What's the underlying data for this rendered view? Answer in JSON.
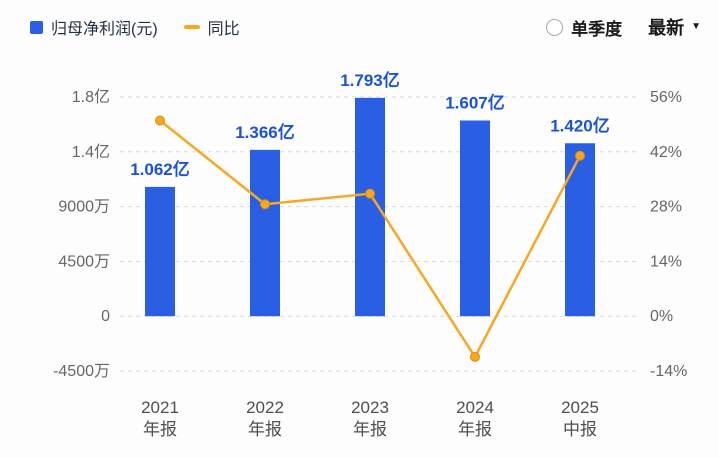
{
  "colors": {
    "background": "#fdfdfd",
    "bar": "#2b5fe3",
    "line": "#f7a823",
    "value_label": "#1a53d8",
    "axis_text": "#666666",
    "x_label": "#4f4f4f",
    "grid": "#d9d9d9",
    "legend_text": "#232f42",
    "control_text": "#1a1a1a"
  },
  "header": {
    "legend": [
      {
        "label": "归母净利润(元)",
        "swatch": "blue-square"
      },
      {
        "label": "同比",
        "swatch": "orange-dash"
      }
    ],
    "quarter_toggle_label": "单季度",
    "period_dropdown_label": "最新"
  },
  "chart_data": {
    "type": "bar+line",
    "categories": [
      "2021 年报",
      "2022 年报",
      "2023 年报",
      "2024 年报",
      "2025 中报"
    ],
    "categories_two_line": [
      [
        "2021",
        "年报"
      ],
      [
        "2022",
        "年报"
      ],
      [
        "2023",
        "年报"
      ],
      [
        "2024",
        "年报"
      ],
      [
        "2025",
        "中报"
      ]
    ],
    "series": [
      {
        "name": "归母净利润(元)",
        "type": "bar",
        "unit": "亿元",
        "values": [
          1.062,
          1.366,
          1.793,
          1.607,
          1.42
        ],
        "data_labels": [
          "1.062亿",
          "1.366亿",
          "1.793亿",
          "1.607亿",
          "1.420亿"
        ]
      },
      {
        "name": "同比",
        "type": "line",
        "unit": "%",
        "values": [
          50,
          28.6,
          31.3,
          -10.4,
          41
        ]
      }
    ],
    "left_axis": {
      "tick_labels": [
        "1.8亿",
        "1.4亿",
        "9000万",
        "4500万",
        "0",
        "-4500万"
      ],
      "tick_values_yi": [
        1.8,
        1.35,
        0.9,
        0.45,
        0,
        -0.45
      ],
      "range_yi": [
        -0.45,
        1.8
      ]
    },
    "right_axis": {
      "tick_labels": [
        "56%",
        "42%",
        "28%",
        "14%",
        "0%",
        "-14%"
      ],
      "tick_values_pct": [
        56,
        42,
        28,
        14,
        0,
        -14
      ],
      "range_pct": [
        -14,
        56
      ]
    },
    "grid": "horizontal dashed",
    "legend_position": "top-left"
  }
}
